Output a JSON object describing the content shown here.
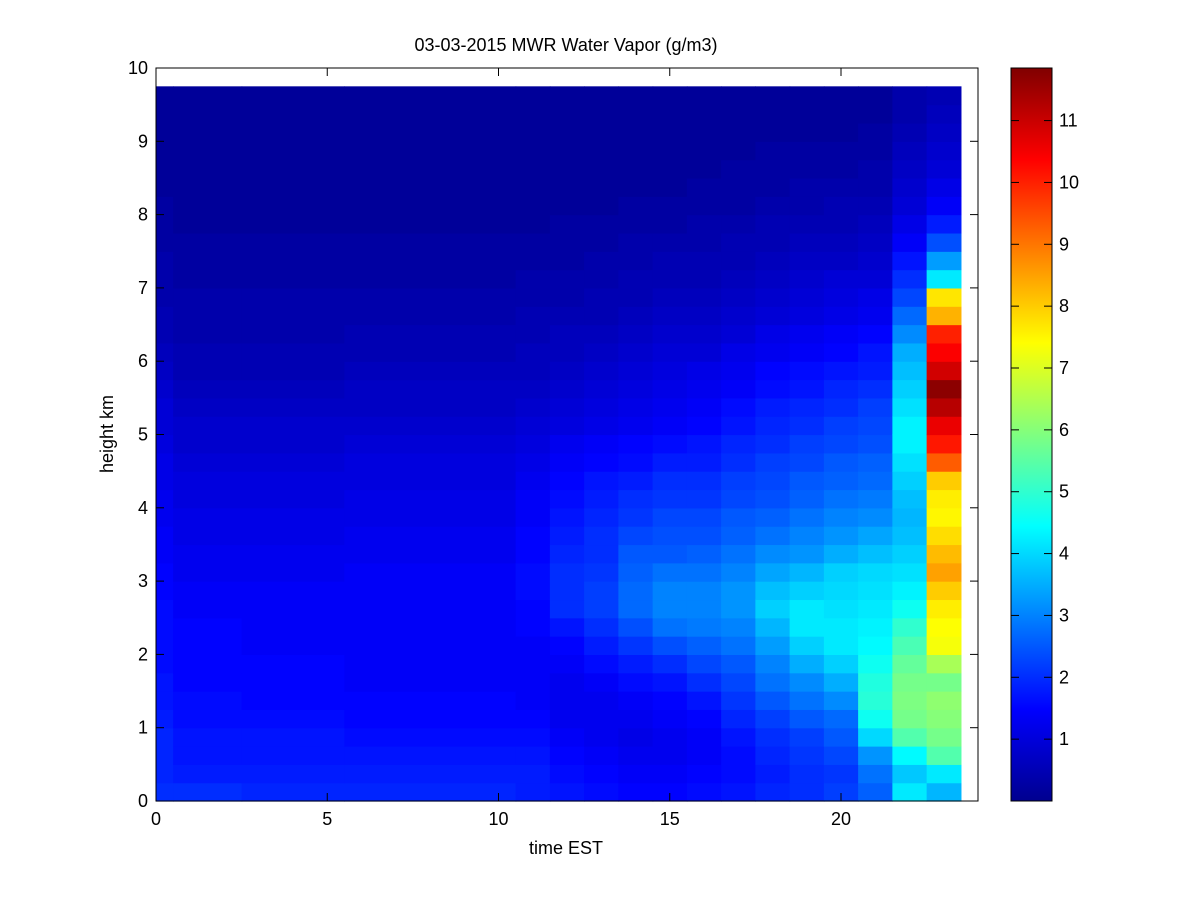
{
  "chart_data": {
    "type": "heatmap",
    "title": "03-03-2015 MWR Water Vapor (g/m3)",
    "xlabel": "time EST",
    "ylabel": "height km",
    "xlim": [
      0,
      24
    ],
    "ylim": [
      0,
      10
    ],
    "x_ticks": [
      "0",
      "5",
      "10",
      "15",
      "20"
    ],
    "y_ticks": [
      "0",
      "1",
      "2",
      "3",
      "4",
      "5",
      "6",
      "7",
      "8",
      "9",
      "10"
    ],
    "colorbar": {
      "colormap": "jet",
      "range": [
        0,
        11.85
      ],
      "ticks": [
        "1",
        "2",
        "3",
        "4",
        "5",
        "6",
        "7",
        "8",
        "9",
        "10",
        "11"
      ]
    },
    "grid": false,
    "time_start": 0,
    "time_end": 23.5,
    "top_km": 9.75,
    "time_bins": [
      0,
      0.5,
      2.5,
      5.5,
      10.5,
      11.5,
      12.5,
      13.5,
      14.5,
      15.5,
      16.5,
      17.5,
      18.5,
      19.5,
      20.5,
      21.5,
      22.5
    ],
    "heights": [
      0,
      0.25,
      0.5,
      0.75,
      1,
      1.25,
      1.5,
      1.75,
      2,
      2.25,
      2.5,
      2.75,
      3,
      3.25,
      3.5,
      3.75,
      4,
      4.25,
      4.5,
      4.75,
      5,
      5.25,
      5.5,
      5.75,
      6,
      6.25,
      6.5,
      6.75,
      7,
      7.25,
      7.5,
      7.75,
      8,
      8.25,
      8.5,
      8.75,
      9,
      9.25,
      9.5
    ],
    "values": [
      [
        2.0,
        1.9,
        1.9,
        1.9,
        1.8,
        1.7,
        1.7,
        1.6,
        1.6,
        1.6,
        1.6,
        1.5,
        1.5,
        1.4,
        1.4,
        1.3,
        1.3,
        1.2,
        1.2,
        1.1,
        1.0,
        1.0,
        0.9,
        0.8,
        0.7,
        0.6,
        0.6,
        0.5,
        0.5,
        0.5,
        0.4,
        0.4,
        0.4,
        0.3,
        0.3,
        0.3,
        0.3,
        0.3,
        0.3
      ],
      [
        2.0,
        1.8,
        1.7,
        1.7,
        1.6,
        1.6,
        1.5,
        1.5,
        1.5,
        1.5,
        1.4,
        1.4,
        1.3,
        1.3,
        1.2,
        1.2,
        1.1,
        1.1,
        1.0,
        0.9,
        0.9,
        0.8,
        0.7,
        0.6,
        0.6,
        0.5,
        0.5,
        0.5,
        0.4,
        0.4,
        0.4,
        0.3,
        0.3,
        0.3,
        0.3,
        0.3,
        0.3,
        0.3,
        0.3
      ],
      [
        1.9,
        1.8,
        1.7,
        1.7,
        1.6,
        1.5,
        1.5,
        1.5,
        1.4,
        1.4,
        1.4,
        1.4,
        1.3,
        1.3,
        1.2,
        1.2,
        1.1,
        1.1,
        1.0,
        0.9,
        0.9,
        0.8,
        0.7,
        0.6,
        0.6,
        0.5,
        0.5,
        0.5,
        0.4,
        0.4,
        0.4,
        0.3,
        0.3,
        0.3,
        0.3,
        0.3,
        0.3,
        0.3,
        0.3
      ],
      [
        1.9,
        1.8,
        1.7,
        1.6,
        1.5,
        1.5,
        1.4,
        1.4,
        1.4,
        1.4,
        1.4,
        1.4,
        1.4,
        1.3,
        1.3,
        1.2,
        1.2,
        1.1,
        1.1,
        1.0,
        0.9,
        0.8,
        0.8,
        0.7,
        0.6,
        0.6,
        0.5,
        0.5,
        0.4,
        0.4,
        0.4,
        0.3,
        0.3,
        0.3,
        0.3,
        0.3,
        0.3,
        0.3,
        0.3
      ],
      [
        1.8,
        1.8,
        1.7,
        1.6,
        1.5,
        1.4,
        1.4,
        1.4,
        1.4,
        1.5,
        1.5,
        1.6,
        1.6,
        1.5,
        1.5,
        1.4,
        1.4,
        1.3,
        1.2,
        1.1,
        1.0,
        0.9,
        0.8,
        0.7,
        0.7,
        0.6,
        0.6,
        0.5,
        0.5,
        0.4,
        0.4,
        0.3,
        0.3,
        0.3,
        0.3,
        0.3,
        0.3,
        0.3,
        0.3
      ],
      [
        1.7,
        1.6,
        1.5,
        1.4,
        1.3,
        1.3,
        1.3,
        1.4,
        1.5,
        1.7,
        2.0,
        2.0,
        2.0,
        1.9,
        1.8,
        1.7,
        1.6,
        1.5,
        1.4,
        1.3,
        1.1,
        1.0,
        0.9,
        0.8,
        0.7,
        0.7,
        0.6,
        0.5,
        0.5,
        0.4,
        0.4,
        0.4,
        0.3,
        0.3,
        0.3,
        0.3,
        0.3,
        0.3,
        0.3
      ],
      [
        1.6,
        1.5,
        1.4,
        1.3,
        1.3,
        1.3,
        1.4,
        1.6,
        1.8,
        2.0,
        2.2,
        2.2,
        2.1,
        2.0,
        2.0,
        1.9,
        1.8,
        1.7,
        1.5,
        1.4,
        1.2,
        1.1,
        1.0,
        0.9,
        0.8,
        0.7,
        0.6,
        0.6,
        0.5,
        0.5,
        0.4,
        0.4,
        0.3,
        0.3,
        0.3,
        0.3,
        0.3,
        0.3,
        0.3
      ],
      [
        1.5,
        1.4,
        1.3,
        1.2,
        1.3,
        1.4,
        1.6,
        1.8,
        2.1,
        2.4,
        2.7,
        2.7,
        2.6,
        2.5,
        2.3,
        2.1,
        2.0,
        1.8,
        1.6,
        1.5,
        1.3,
        1.2,
        1.1,
        1.0,
        0.9,
        0.8,
        0.7,
        0.6,
        0.6,
        0.5,
        0.5,
        0.4,
        0.4,
        0.3,
        0.3,
        0.3,
        0.3,
        0.3,
        0.3
      ],
      [
        1.5,
        1.4,
        1.3,
        1.3,
        1.4,
        1.5,
        1.7,
        2.0,
        2.4,
        2.8,
        3.0,
        3.0,
        2.8,
        2.5,
        2.4,
        2.3,
        2.1,
        2.0,
        1.8,
        1.6,
        1.4,
        1.3,
        1.2,
        1.1,
        1.0,
        0.9,
        0.8,
        0.7,
        0.6,
        0.6,
        0.5,
        0.4,
        0.4,
        0.3,
        0.3,
        0.3,
        0.3,
        0.3,
        0.3
      ],
      [
        1.6,
        1.5,
        1.4,
        1.4,
        1.5,
        1.7,
        2.0,
        2.3,
        2.6,
        2.9,
        3.0,
        3.0,
        2.8,
        2.6,
        2.4,
        2.3,
        2.1,
        2.0,
        1.8,
        1.7,
        1.5,
        1.4,
        1.3,
        1.2,
        1.0,
        0.9,
        0.8,
        0.7,
        0.6,
        0.6,
        0.5,
        0.5,
        0.4,
        0.4,
        0.3,
        0.3,
        0.3,
        0.3,
        0.3
      ],
      [
        1.7,
        1.6,
        1.6,
        1.7,
        1.9,
        2.1,
        2.3,
        2.5,
        2.8,
        3.0,
        3.2,
        3.2,
        3.0,
        2.8,
        2.6,
        2.5,
        2.3,
        2.2,
        2.0,
        1.9,
        1.7,
        1.6,
        1.4,
        1.3,
        1.2,
        1.0,
        0.9,
        0.8,
        0.7,
        0.6,
        0.6,
        0.5,
        0.4,
        0.4,
        0.4,
        0.3,
        0.3,
        0.3,
        0.3
      ],
      [
        1.9,
        1.8,
        1.9,
        2.0,
        2.2,
        2.5,
        2.8,
        3.0,
        3.3,
        3.6,
        3.9,
        3.7,
        3.4,
        3.1,
        2.8,
        2.6,
        2.4,
        2.3,
        2.2,
        2.0,
        1.9,
        1.8,
        1.6,
        1.5,
        1.3,
        1.2,
        1.0,
        0.9,
        0.8,
        0.7,
        0.6,
        0.6,
        0.5,
        0.4,
        0.4,
        0.4,
        0.3,
        0.3,
        0.3
      ],
      [
        2.0,
        2.0,
        2.1,
        2.2,
        2.5,
        2.8,
        3.1,
        3.5,
        3.9,
        4.2,
        4.2,
        3.9,
        3.6,
        3.2,
        3.0,
        2.8,
        2.6,
        2.5,
        2.3,
        2.2,
        2.0,
        1.9,
        1.7,
        1.6,
        1.4,
        1.3,
        1.1,
        1.0,
        0.9,
        0.8,
        0.7,
        0.6,
        0.5,
        0.5,
        0.4,
        0.4,
        0.3,
        0.3,
        0.3
      ],
      [
        2.2,
        2.1,
        2.3,
        2.5,
        2.7,
        3.1,
        3.5,
        3.9,
        4.2,
        4.2,
        4.1,
        4.0,
        3.9,
        3.5,
        3.2,
        3.0,
        2.8,
        2.6,
        2.5,
        2.3,
        2.2,
        2.0,
        1.9,
        1.7,
        1.5,
        1.4,
        1.2,
        1.1,
        1.0,
        0.8,
        0.7,
        0.6,
        0.6,
        0.5,
        0.4,
        0.4,
        0.3,
        0.3,
        0.3
      ],
      [
        2.6,
        2.8,
        3.2,
        4.0,
        4.6,
        4.9,
        4.8,
        4.6,
        4.4,
        4.3,
        4.2,
        4.1,
        4.0,
        3.7,
        3.4,
        3.1,
        2.9,
        2.7,
        2.6,
        2.4,
        2.3,
        2.2,
        2.0,
        1.8,
        1.7,
        1.5,
        1.3,
        1.2,
        1.0,
        0.9,
        0.8,
        0.7,
        0.6,
        0.5,
        0.5,
        0.4,
        0.4,
        0.3,
        0.3
      ],
      [
        4.2,
        3.8,
        4.4,
        5.4,
        5.8,
        5.9,
        5.8,
        5.6,
        5.3,
        5.0,
        4.6,
        4.3,
        4.1,
        3.9,
        3.7,
        3.6,
        3.7,
        3.9,
        4.1,
        4.3,
        4.3,
        4.1,
        3.9,
        3.7,
        3.5,
        3.1,
        2.7,
        2.3,
        2.0,
        1.7,
        1.4,
        1.2,
        1.0,
        0.9,
        0.8,
        0.7,
        0.6,
        0.5,
        0.5
      ],
      [
        3.6,
        4.2,
        5.4,
        5.8,
        6.0,
        6.1,
        5.8,
        6.4,
        7.3,
        7.4,
        7.6,
        8.0,
        8.5,
        8.2,
        7.8,
        7.5,
        7.6,
        8.0,
        9.3,
        10.1,
        10.6,
        11.2,
        11.7,
        10.9,
        10.4,
        10.0,
        8.3,
        7.7,
        4.2,
        3.3,
        2.4,
        1.8,
        1.4,
        1.2,
        1.0,
        0.9,
        0.8,
        0.7,
        0.6
      ]
    ]
  }
}
